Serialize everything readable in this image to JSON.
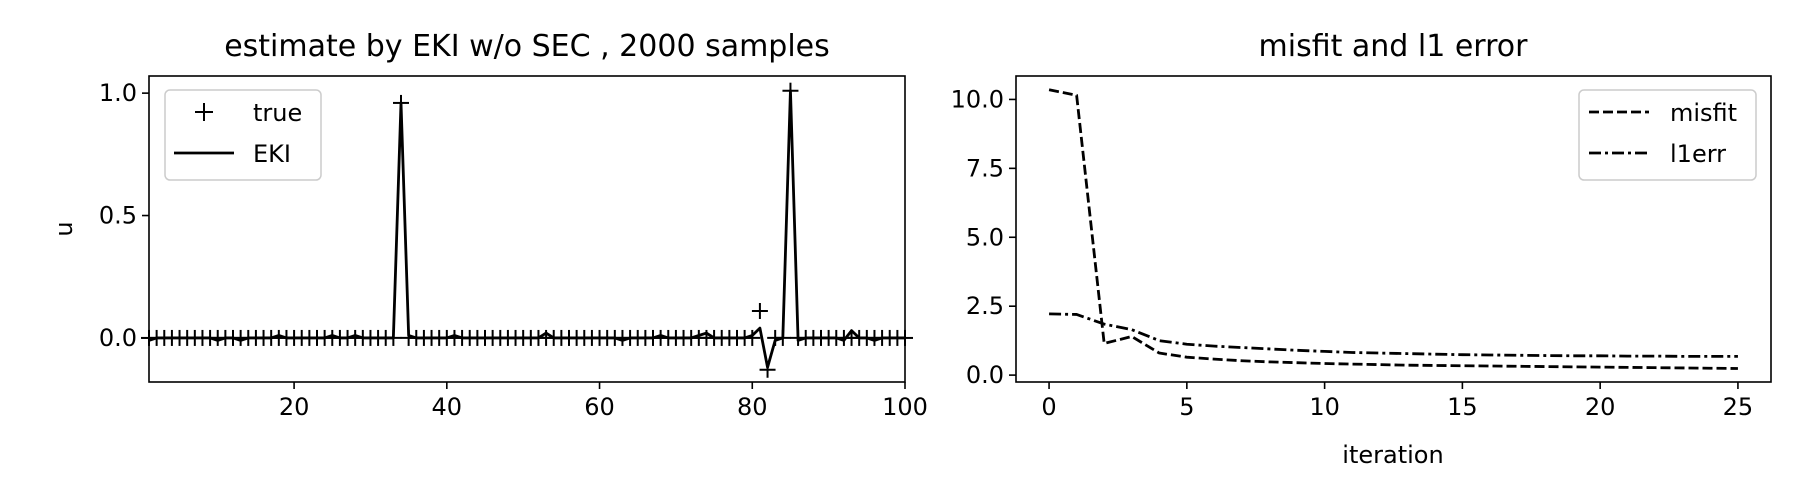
{
  "chart_data": [
    {
      "type": "line",
      "title": "estimate by EKI w/o SEC , 2000 samples",
      "xlabel": "",
      "ylabel": "u",
      "xlim": [
        1,
        100
      ],
      "ylim": [
        -0.18,
        1.07
      ],
      "xticks": [
        20,
        40,
        60,
        80,
        100
      ],
      "yticks": [
        0.0,
        0.5,
        1.0
      ],
      "xtick_labels": [
        "20",
        "40",
        "60",
        "80",
        "100"
      ],
      "ytick_labels": [
        "0.0",
        "0.5",
        "1.0"
      ],
      "grid": false,
      "legend_position": "top-left",
      "series": [
        {
          "name": "true",
          "style": "plus-markers",
          "color": "#000000",
          "x": [
            1,
            2,
            3,
            4,
            5,
            6,
            7,
            8,
            9,
            10,
            11,
            12,
            13,
            14,
            15,
            16,
            17,
            18,
            19,
            20,
            21,
            22,
            23,
            24,
            25,
            26,
            27,
            28,
            29,
            30,
            31,
            32,
            33,
            34,
            35,
            36,
            37,
            38,
            39,
            40,
            41,
            42,
            43,
            44,
            45,
            46,
            47,
            48,
            49,
            50,
            51,
            52,
            53,
            54,
            55,
            56,
            57,
            58,
            59,
            60,
            61,
            62,
            63,
            64,
            65,
            66,
            67,
            68,
            69,
            70,
            71,
            72,
            73,
            74,
            75,
            76,
            77,
            78,
            79,
            80,
            81,
            82,
            83,
            84,
            85,
            86,
            87,
            88,
            89,
            90,
            91,
            92,
            93,
            94,
            95,
            96,
            97,
            98,
            99,
            100
          ],
          "y": [
            0,
            0,
            0,
            0,
            0,
            0,
            0,
            0,
            0,
            0,
            0,
            0,
            0,
            0,
            0,
            0,
            0,
            0,
            0,
            0,
            0,
            0,
            0,
            0,
            0,
            0,
            0,
            0,
            0,
            0,
            0,
            0,
            0,
            0.96,
            0,
            0,
            0,
            0,
            0,
            0,
            0,
            0,
            0,
            0,
            0,
            0,
            0,
            0,
            0,
            0,
            0,
            0,
            0,
            0,
            0,
            0,
            0,
            0,
            0,
            0,
            0,
            0,
            0,
            0,
            0,
            0,
            0,
            0,
            0,
            0,
            0,
            0,
            0,
            0,
            0,
            0,
            0,
            0,
            0,
            0,
            0.11,
            -0.13,
            0,
            0,
            1.01,
            0,
            0,
            0,
            0,
            0,
            0,
            0,
            0,
            0,
            0,
            0,
            0,
            0,
            0,
            0
          ]
        },
        {
          "name": "EKI",
          "style": "solid",
          "color": "#000000",
          "x": [
            1,
            2,
            3,
            4,
            5,
            6,
            7,
            8,
            9,
            10,
            11,
            12,
            13,
            14,
            15,
            16,
            17,
            18,
            19,
            20,
            21,
            22,
            23,
            24,
            25,
            26,
            27,
            28,
            29,
            30,
            31,
            32,
            33,
            34,
            35,
            36,
            37,
            38,
            39,
            40,
            41,
            42,
            43,
            44,
            45,
            46,
            47,
            48,
            49,
            50,
            51,
            52,
            53,
            54,
            55,
            56,
            57,
            58,
            59,
            60,
            61,
            62,
            63,
            64,
            65,
            66,
            67,
            68,
            69,
            70,
            71,
            72,
            73,
            74,
            75,
            76,
            77,
            78,
            79,
            80,
            81,
            82,
            83,
            84,
            85,
            86,
            87,
            88,
            89,
            90,
            91,
            92,
            93,
            94,
            95,
            96,
            97,
            98,
            99,
            100
          ],
          "y": [
            -0.01,
            0,
            0,
            0,
            0,
            0,
            0,
            0,
            0,
            -0.01,
            0,
            0,
            -0.01,
            0,
            0,
            0,
            0,
            0.01,
            0,
            0,
            0,
            0,
            0,
            0,
            0.01,
            0,
            0,
            0.01,
            0,
            0,
            0,
            0,
            0,
            0.96,
            0.01,
            0,
            0,
            0,
            0,
            0,
            0.01,
            0,
            0,
            0,
            0,
            0,
            0,
            0,
            0,
            0,
            0,
            0,
            0.02,
            0,
            0,
            0,
            0,
            0,
            0,
            0,
            0,
            0,
            -0.01,
            0,
            0,
            0,
            0,
            0.01,
            0,
            0,
            0,
            0,
            0.01,
            0.02,
            0,
            0,
            0,
            0,
            0,
            0.01,
            0.04,
            -0.12,
            -0.01,
            0,
            1.01,
            -0.01,
            0,
            0,
            0,
            0,
            0,
            -0.01,
            0.03,
            0,
            0,
            -0.01,
            0,
            0,
            0,
            0
          ]
        }
      ]
    },
    {
      "type": "line",
      "title": "misfit and l1 error",
      "xlabel": "iteration",
      "ylabel": "",
      "xlim": [
        -1.2,
        26.2
      ],
      "ylim": [
        -0.25,
        10.85
      ],
      "xticks": [
        0,
        5,
        10,
        15,
        20,
        25
      ],
      "yticks": [
        0.0,
        2.5,
        5.0,
        7.5,
        10.0
      ],
      "xtick_labels": [
        "0",
        "5",
        "10",
        "15",
        "20",
        "25"
      ],
      "ytick_labels": [
        "0.0",
        "2.5",
        "5.0",
        "7.5",
        "10.0"
      ],
      "grid": false,
      "legend_position": "top-right",
      "series": [
        {
          "name": "misfit",
          "style": "dashed",
          "color": "#000000",
          "x": [
            0,
            1,
            2,
            3,
            4,
            5,
            6,
            7,
            8,
            9,
            10,
            11,
            12,
            13,
            14,
            15,
            16,
            17,
            18,
            19,
            20,
            21,
            22,
            23,
            24,
            25
          ],
          "y": [
            10.35,
            10.15,
            1.15,
            1.4,
            0.8,
            0.65,
            0.58,
            0.52,
            0.48,
            0.45,
            0.42,
            0.4,
            0.38,
            0.36,
            0.35,
            0.34,
            0.33,
            0.32,
            0.31,
            0.3,
            0.29,
            0.28,
            0.27,
            0.26,
            0.25,
            0.24
          ]
        },
        {
          "name": "l1err",
          "style": "dashdot",
          "color": "#000000",
          "x": [
            0,
            1,
            2,
            3,
            4,
            5,
            6,
            7,
            8,
            9,
            10,
            11,
            12,
            13,
            14,
            15,
            16,
            17,
            18,
            19,
            20,
            21,
            22,
            23,
            24,
            25
          ],
          "y": [
            2.22,
            2.2,
            1.85,
            1.65,
            1.25,
            1.12,
            1.05,
            1.0,
            0.95,
            0.9,
            0.86,
            0.82,
            0.8,
            0.78,
            0.76,
            0.74,
            0.73,
            0.72,
            0.71,
            0.7,
            0.7,
            0.69,
            0.69,
            0.68,
            0.68,
            0.68
          ]
        }
      ]
    }
  ]
}
